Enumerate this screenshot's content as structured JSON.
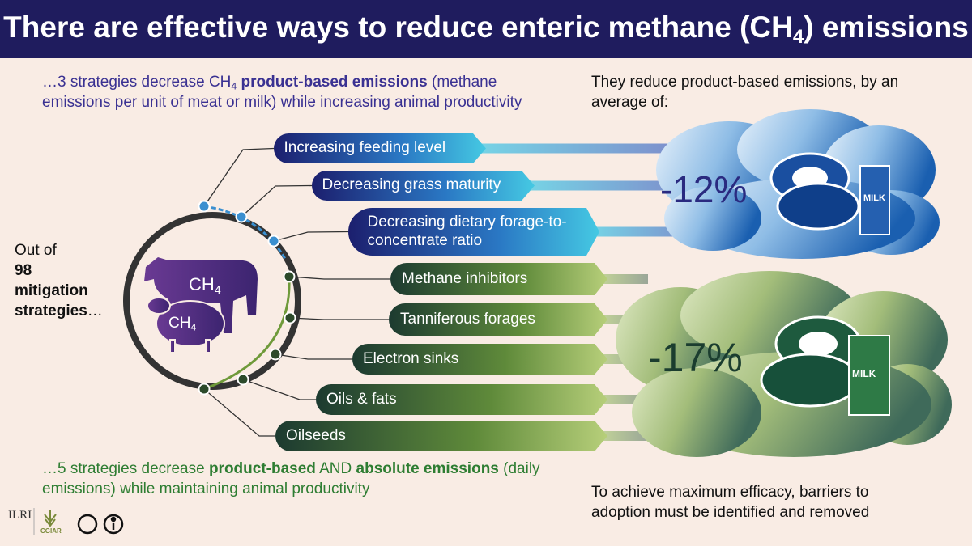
{
  "header": {
    "title": {
      "main": "There are effective ways to reduce enteric methane (CH",
      "sub": "4",
      "end": ") emissions"
    }
  },
  "top_intro": {
    "lead": "…3 strategies decrease CH",
    "sub": "4",
    "bold": " product-based emissions",
    "rest": " (methane emissions per unit of meat or milk) while increasing animal productivity"
  },
  "left_text": {
    "lead": "Out of",
    "number": "98",
    "bold": "mitigation strategies",
    "ellipsis": "…"
  },
  "circle": {
    "cow": {
      "label": "CH",
      "sub": "4"
    },
    "sheep": {
      "label": "CH",
      "sub": "4"
    }
  },
  "product_strategies": [
    "Increasing feeding level",
    "Decreasing grass maturity",
    "Decreasing dietary forage-to-concentrate ratio"
  ],
  "absolute_strategies": [
    "Methane inhibitors",
    "Tanniferous forages",
    "Electron sinks",
    "Oils & fats",
    "Oilseeds"
  ],
  "right_intro": "They reduce product-based emissions, by an average of:",
  "clouds": [
    {
      "value": "-12%",
      "carton": "MILK"
    },
    {
      "value": "-17%",
      "carton": "MILK"
    }
  ],
  "bottom_intro": {
    "lead": "…5 strategies decrease ",
    "bold1": "product-based",
    "mid": " AND ",
    "bold2": "absolute emissions",
    "rest": " (daily emissions) while maintaining animal productivity"
  },
  "bottom_right": "To achieve maximum efficacy, barriers to adoption must be identified and removed",
  "logos": {
    "ilri": "ILRI",
    "cgiar": "CGIAR"
  }
}
